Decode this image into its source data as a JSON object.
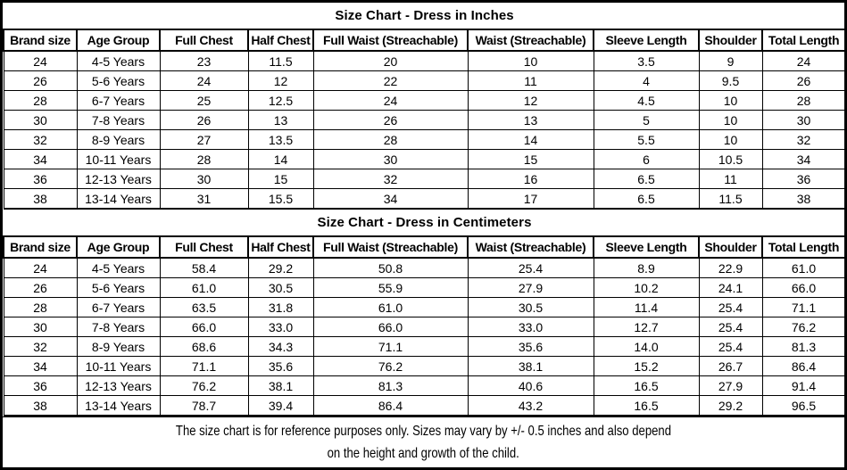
{
  "tables": [
    {
      "title": "Size Chart - Dress in Inches",
      "columns": [
        "Brand size",
        "Age Group",
        "Full Chest",
        "Half Chest",
        "Full Waist (Streachable)",
        "Waist (Streachable)",
        "Sleeve Length",
        "Shoulder",
        "Total Length"
      ],
      "rows": [
        [
          "24",
          "4-5 Years",
          "23",
          "11.5",
          "20",
          "10",
          "3.5",
          "9",
          "24"
        ],
        [
          "26",
          "5-6 Years",
          "24",
          "12",
          "22",
          "11",
          "4",
          "9.5",
          "26"
        ],
        [
          "28",
          "6-7 Years",
          "25",
          "12.5",
          "24",
          "12",
          "4.5",
          "10",
          "28"
        ],
        [
          "30",
          "7-8 Years",
          "26",
          "13",
          "26",
          "13",
          "5",
          "10",
          "30"
        ],
        [
          "32",
          "8-9 Years",
          "27",
          "13.5",
          "28",
          "14",
          "5.5",
          "10",
          "32"
        ],
        [
          "34",
          "10-11 Years",
          "28",
          "14",
          "30",
          "15",
          "6",
          "10.5",
          "34"
        ],
        [
          "36",
          "12-13 Years",
          "30",
          "15",
          "32",
          "16",
          "6.5",
          "11",
          "36"
        ],
        [
          "38",
          "13-14 Years",
          "31",
          "15.5",
          "34",
          "17",
          "6.5",
          "11.5",
          "38"
        ]
      ]
    },
    {
      "title": "Size Chart - Dress in Centimeters",
      "columns": [
        "Brand size",
        "Age Group",
        "Full Chest",
        "Half Chest",
        "Full Waist (Streachable)",
        "Waist (Streachable)",
        "Sleeve Length",
        "Shoulder",
        "Total Length"
      ],
      "rows": [
        [
          "24",
          "4-5 Years",
          "58.4",
          "29.2",
          "50.8",
          "25.4",
          "8.9",
          "22.9",
          "61.0"
        ],
        [
          "26",
          "5-6 Years",
          "61.0",
          "30.5",
          "55.9",
          "27.9",
          "10.2",
          "24.1",
          "66.0"
        ],
        [
          "28",
          "6-7 Years",
          "63.5",
          "31.8",
          "61.0",
          "30.5",
          "11.4",
          "25.4",
          "71.1"
        ],
        [
          "30",
          "7-8 Years",
          "66.0",
          "33.0",
          "66.0",
          "33.0",
          "12.7",
          "25.4",
          "76.2"
        ],
        [
          "32",
          "8-9 Years",
          "68.6",
          "34.3",
          "71.1",
          "35.6",
          "14.0",
          "25.4",
          "81.3"
        ],
        [
          "34",
          "10-11 Years",
          "71.1",
          "35.6",
          "76.2",
          "38.1",
          "15.2",
          "26.7",
          "86.4"
        ],
        [
          "36",
          "12-13 Years",
          "76.2",
          "38.1",
          "81.3",
          "40.6",
          "16.5",
          "27.9",
          "91.4"
        ],
        [
          "38",
          "13-14 Years",
          "78.7",
          "39.4",
          "86.4",
          "43.2",
          "16.5",
          "29.2",
          "96.5"
        ]
      ]
    }
  ],
  "footer": {
    "line1": "The size chart is for reference purposes only. Sizes may vary by +/- 0.5 inches and also depend",
    "line2": "on the height and growth of the child."
  },
  "colors": {
    "border": "#000000",
    "text": "#000000",
    "background": "#ffffff"
  }
}
